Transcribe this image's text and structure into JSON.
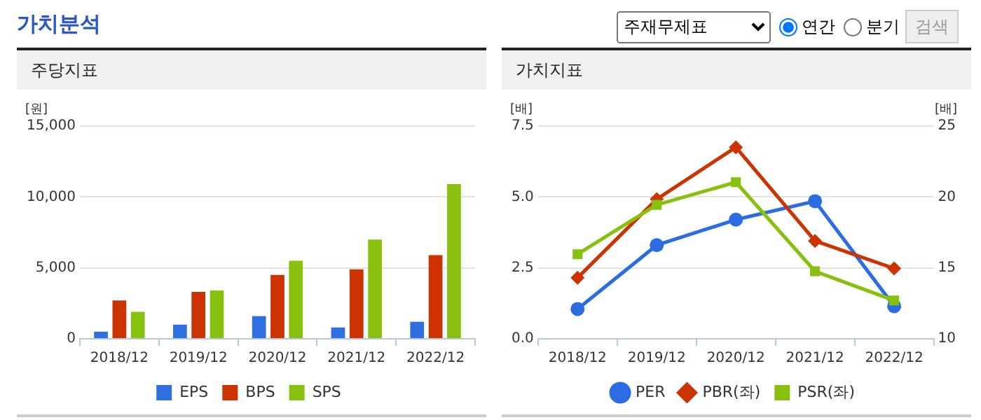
{
  "chart_data": [
    {
      "type": "bar",
      "title": "주당지표",
      "ylabel": "[원]",
      "categories": [
        "2018/12",
        "2019/12",
        "2020/12",
        "2021/12",
        "2022/12"
      ],
      "series": [
        {
          "name": "EPS",
          "color": "#2f6fe0",
          "values": [
            500,
            1000,
            1600,
            800,
            1200
          ]
        },
        {
          "name": "BPS",
          "color": "#cc3300",
          "values": [
            2700,
            3300,
            4500,
            4900,
            5900
          ]
        },
        {
          "name": "SPS",
          "color": "#88c010",
          "values": [
            1900,
            3400,
            5500,
            7000,
            10900
          ]
        }
      ],
      "ylim": [
        0,
        15000
      ],
      "yticks": [
        0,
        {
          "value": 5000,
          "label": "5,000"
        },
        {
          "value": 10000,
          "label": "10,000"
        },
        {
          "value": 15000,
          "label": "15,000"
        }
      ],
      "grid": "y",
      "legend": "bottom",
      "annotations": [
        "가치분석",
        "주재무제표",
        "연간",
        "분기",
        "검색"
      ]
    },
    {
      "type": "line",
      "title": "가치지표",
      "ylabel": "[배]",
      "y2label": "[배]",
      "categories": [
        "2018/12",
        "2019/12",
        "2020/12",
        "2021/12",
        "2022/12"
      ],
      "series": [
        {
          "name": "PER",
          "color": "#2b6de0",
          "axis": "y2",
          "marker": "circle",
          "values": [
            12.1,
            16.6,
            18.4,
            19.7,
            12.3
          ]
        },
        {
          "name": "PBR(좌)",
          "color": "#cc3300",
          "marker": "diamond",
          "values": [
            2.15,
            4.92,
            6.75,
            3.45,
            2.48
          ]
        },
        {
          "name": "PSR(좌)",
          "color": "#88c010",
          "marker": "square",
          "values": [
            2.98,
            4.72,
            5.52,
            2.38,
            1.35
          ]
        }
      ],
      "ylim": [
        0,
        7.5
      ],
      "yticks": [
        {
          "value": 0,
          "label": "0.0"
        },
        2.5,
        {
          "value": 5,
          "label": "5.0"
        },
        7.5
      ],
      "y2lim": [
        10,
        25
      ],
      "y2ticks": [
        10,
        15,
        20,
        25
      ],
      "grid": "y",
      "legend": "bottom",
      "line_style": "solid"
    }
  ]
}
